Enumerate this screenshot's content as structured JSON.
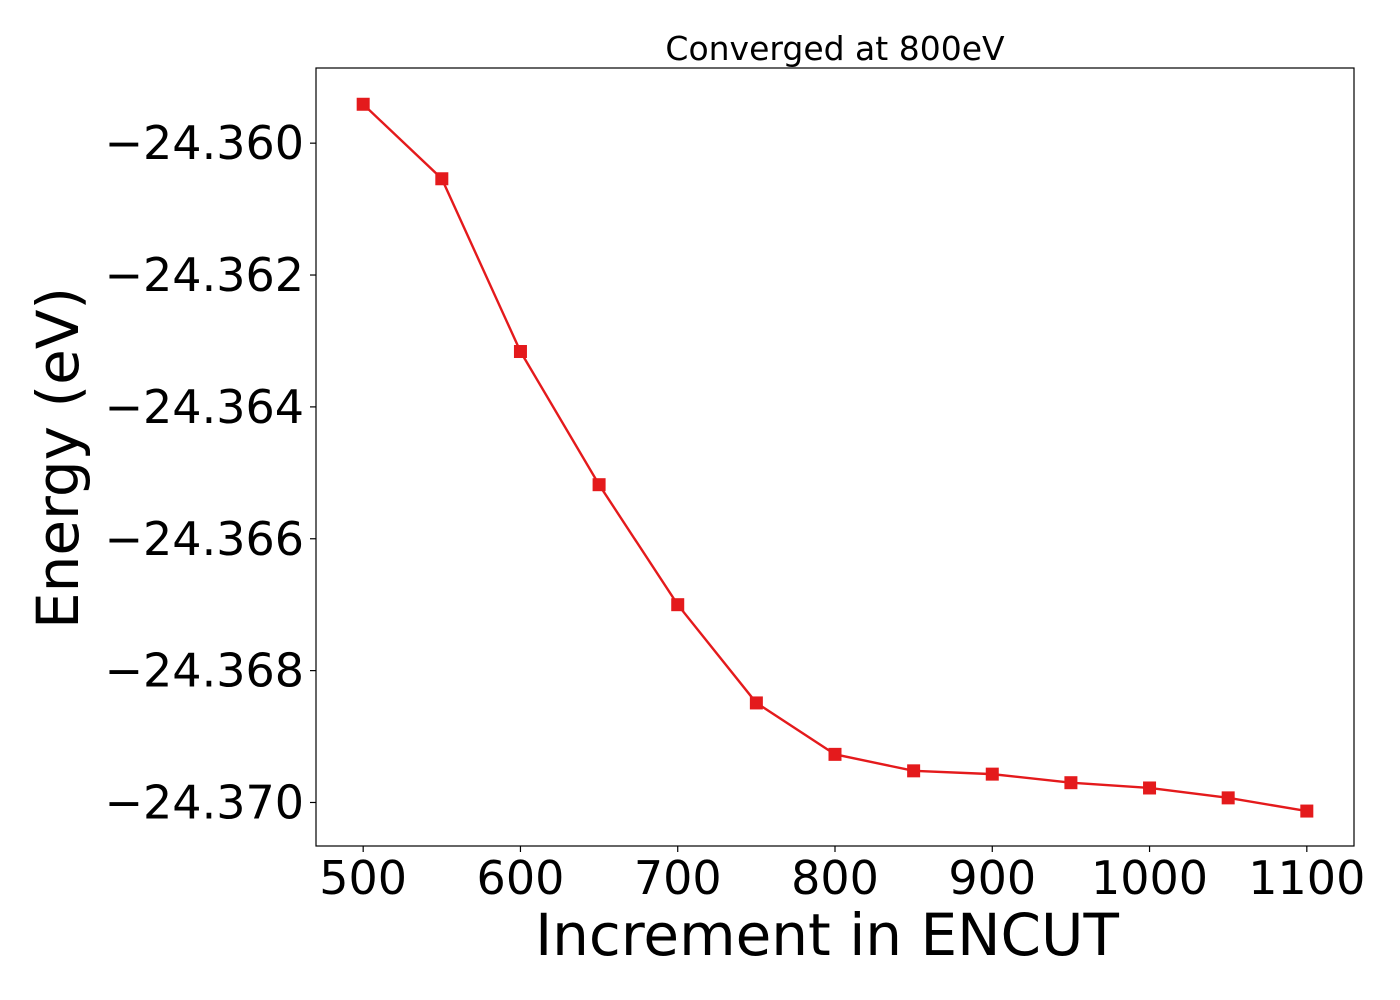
{
  "chart_data": {
    "type": "line",
    "title": "Converged at 800eV",
    "xlabel": "Increment in ENCUT",
    "ylabel": "Energy (eV)",
    "xlim": [
      470,
      1130
    ],
    "ylim": [
      -24.37066,
      -24.35886
    ],
    "xticks": [
      500,
      600,
      700,
      800,
      900,
      1000,
      1100
    ],
    "xtick_labels": [
      "500",
      "600",
      "700",
      "800",
      "900",
      "1000",
      "1100"
    ],
    "yticks": [
      -24.36,
      -24.362,
      -24.364,
      -24.366,
      -24.368,
      -24.37
    ],
    "ytick_labels": [
      "−24.360",
      "−24.362",
      "−24.364",
      "−24.366",
      "−24.368",
      "−24.370"
    ],
    "grid": false,
    "series": [
      {
        "color": "#e41a1c",
        "marker": "square",
        "x": [
          500,
          550,
          600,
          650,
          700,
          750,
          800,
          850,
          900,
          950,
          1000,
          1050,
          1100
        ],
        "y": [
          -24.35941,
          -24.36054,
          -24.36316,
          -24.36518,
          -24.367,
          -24.36849,
          -24.36927,
          -24.36952,
          -24.36957,
          -24.3697,
          -24.36978,
          -24.36993,
          -24.37013
        ]
      }
    ]
  }
}
